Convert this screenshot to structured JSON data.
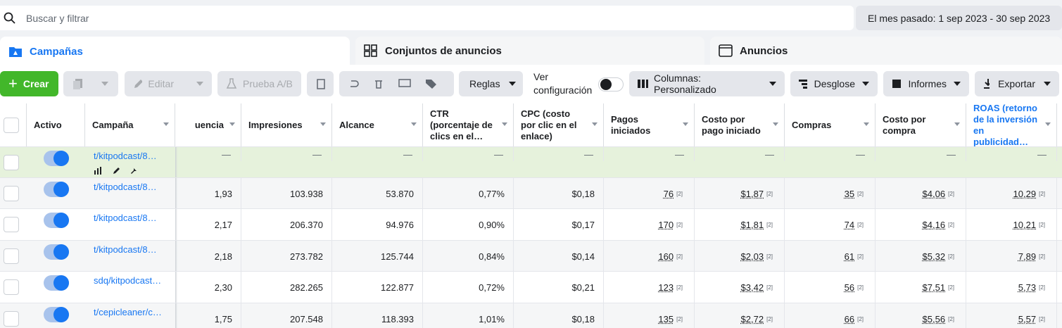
{
  "search": {
    "placeholder": "Buscar y filtrar"
  },
  "date_range": "El mes pasado: 1 sep 2023 - 30 sep 2023",
  "tabs": [
    "Campañas",
    "Conjuntos de anuncios",
    "Anuncios"
  ],
  "toolbar": {
    "create": "Crear",
    "edit": "Editar",
    "ab_test": "Prueba A/B",
    "rules": "Reglas",
    "view_setup": "Ver configuración",
    "columns": "Columnas: Personalizado",
    "breakdown": "Desglose",
    "reports": "Informes",
    "export": "Exportar"
  },
  "table": {
    "headers": [
      "Activo",
      "Campaña",
      "uencia",
      "Impresiones",
      "Alcance",
      "CTR (porcentaje de clics en el…",
      "CPC (costo por clic en el enlace)",
      "Pagos iniciados",
      "Costo por pago iniciado",
      "Compras",
      "Costo por compra",
      "ROAS (retorno de la inversión en publicidad…"
    ],
    "footnote_mark": "[2]",
    "rows": [
      {
        "campaign": "t/kitpodcast/8…",
        "cells": [
          "—",
          "—",
          "—",
          "—",
          "—",
          "—",
          "—",
          "—",
          "—",
          "—"
        ]
      },
      {
        "campaign": "t/kitpodcast/8…",
        "cells": [
          "1,93",
          "103.938",
          "53.870",
          "0,77%",
          "$0,18",
          "76",
          "$1,87",
          "35",
          "$4,06",
          "10,29"
        ]
      },
      {
        "campaign": "t/kitpodcast/8…",
        "cells": [
          "2,17",
          "206.370",
          "94.976",
          "0,90%",
          "$0,17",
          "170",
          "$1,81",
          "74",
          "$4,16",
          "10,21"
        ]
      },
      {
        "campaign": "t/kitpodcast/8…",
        "cells": [
          "2,18",
          "273.782",
          "125.744",
          "0,84%",
          "$0,14",
          "160",
          "$2,03",
          "61",
          "$5,32",
          "7,89"
        ]
      },
      {
        "campaign": "sdq/kitpodcast…",
        "cells": [
          "2,30",
          "282.265",
          "122.877",
          "0,72%",
          "$0,21",
          "123",
          "$3,42",
          "56",
          "$7,51",
          "5,73"
        ]
      },
      {
        "campaign": "t/cepicleaner/c…",
        "cells": [
          "1,75",
          "207.548",
          "118.393",
          "1,01%",
          "$0,18",
          "135",
          "$2,72",
          "66",
          "$5,56",
          "5,57"
        ]
      }
    ]
  }
}
